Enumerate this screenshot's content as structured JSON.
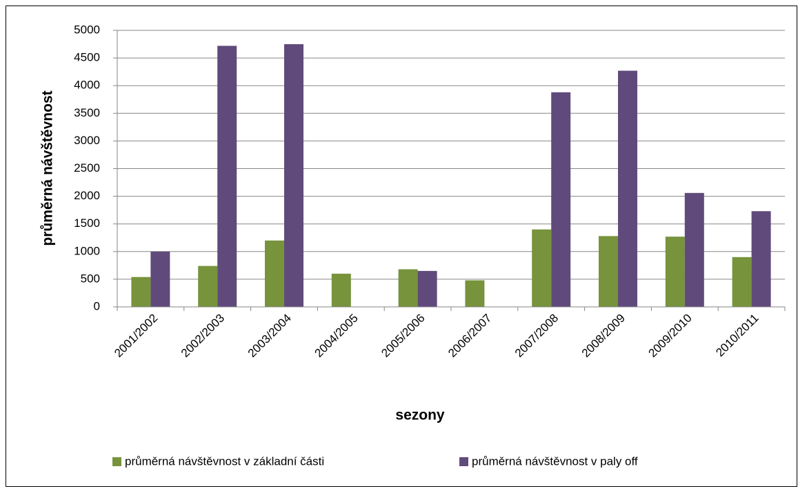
{
  "chart_data": {
    "type": "bar",
    "x_label": "sezony",
    "y_label": "průměrná návštěvnost",
    "categories": [
      "2001/2002",
      "2002/2003",
      "2003/2004",
      "2004/2005",
      "2005/2006",
      "2006/2007",
      "2007/2008",
      "2008/2009",
      "2009/2010",
      "2010/2011"
    ],
    "series": [
      {
        "name": "průměrná návštěvnost v základní části",
        "color": "#77933c",
        "values": [
          540,
          740,
          1200,
          600,
          680,
          480,
          1400,
          1280,
          1270,
          900
        ]
      },
      {
        "name": "průměrná návštěvnost v paly off",
        "color": "#604a7b",
        "values": [
          1000,
          4720,
          4750,
          null,
          650,
          null,
          3880,
          4270,
          2060,
          1730
        ]
      }
    ],
    "ylim": [
      0,
      5000
    ],
    "yticks": [
      0,
      500,
      1000,
      1500,
      2000,
      2500,
      3000,
      3500,
      4000,
      4500,
      5000
    ],
    "grid": true,
    "legend": "bottom"
  }
}
